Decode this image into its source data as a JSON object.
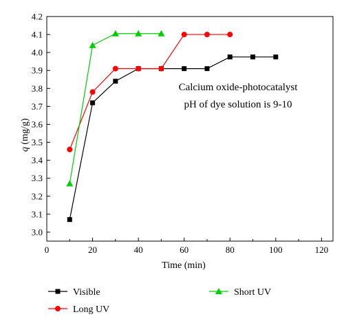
{
  "chart_data": {
    "type": "line",
    "xlabel": "Time (min)",
    "ylabel_italic": "q",
    "ylabel_unit": "(mg/g)",
    "xlim": [
      0,
      125
    ],
    "ylim": [
      2.95,
      4.2
    ],
    "xticks": [
      0,
      20,
      40,
      60,
      80,
      100,
      120
    ],
    "yticks": [
      3.0,
      3.1,
      3.2,
      3.3,
      3.4,
      3.5,
      3.6,
      3.7,
      3.8,
      3.9,
      4.0,
      4.1,
      4.2
    ],
    "grid": false,
    "legend_position": "bottom",
    "annotations": [
      "Calcium oxide-photocatalyst",
      "pH of dye solution is 9-10"
    ],
    "series": [
      {
        "name": "Visible",
        "color": "#000000",
        "marker": "square",
        "x": [
          10,
          20,
          30,
          40,
          50,
          60,
          70,
          80,
          90,
          100
        ],
        "y": [
          3.07,
          3.72,
          3.84,
          3.91,
          3.91,
          3.91,
          3.91,
          3.975,
          3.975,
          3.975
        ]
      },
      {
        "name": "Long UV",
        "color": "#ff0000",
        "marker": "circle",
        "x": [
          10,
          20,
          30,
          40,
          50,
          60,
          70,
          80
        ],
        "y": [
          3.46,
          3.78,
          3.91,
          3.91,
          3.91,
          4.1,
          4.1,
          4.1
        ]
      },
      {
        "name": "Short UV",
        "color": "#00cc00",
        "marker": "triangle",
        "x": [
          10,
          20,
          30,
          40,
          50
        ],
        "y": [
          3.27,
          4.04,
          4.105,
          4.105,
          4.105
        ]
      }
    ]
  }
}
